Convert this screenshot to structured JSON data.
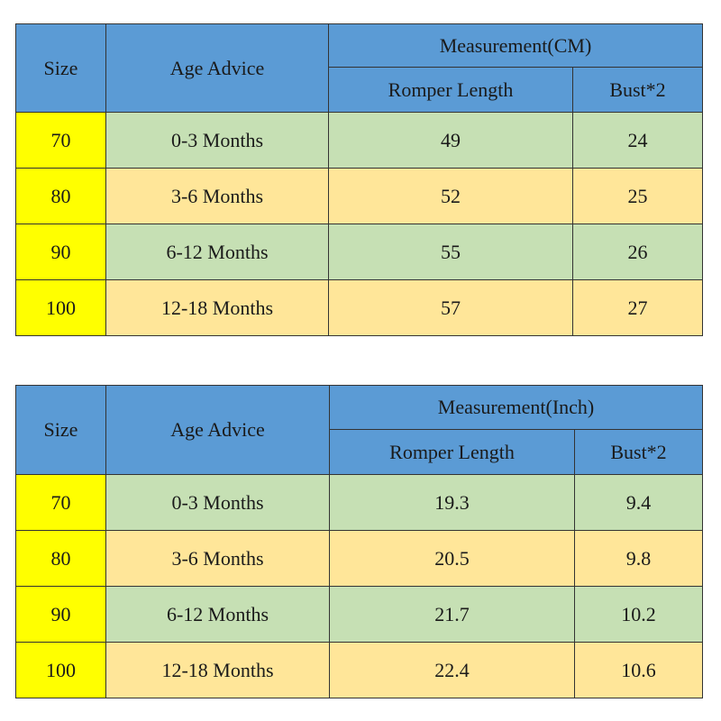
{
  "table_cm": {
    "header": {
      "size": "Size",
      "age": "Age Advice",
      "measurement": "Measurement(CM)",
      "length": "Romper Length",
      "bust": "Bust*2"
    },
    "rows": [
      {
        "size": "70",
        "age": "0-3 Months",
        "length": "49",
        "bust": "24"
      },
      {
        "size": "80",
        "age": "3-6 Months",
        "length": "52",
        "bust": "25"
      },
      {
        "size": "90",
        "age": "6-12 Months",
        "length": "55",
        "bust": "26"
      },
      {
        "size": "100",
        "age": "12-18 Months",
        "length": "57",
        "bust": "27"
      }
    ]
  },
  "table_inch": {
    "header": {
      "size": "Size",
      "age": "Age Advice",
      "measurement": "Measurement(Inch)",
      "length": "Romper Length",
      "bust": "Bust*2"
    },
    "rows": [
      {
        "size": "70",
        "age": "0-3 Months",
        "length": "19.3",
        "bust": "9.4"
      },
      {
        "size": "80",
        "age": "3-6 Months",
        "length": "20.5",
        "bust": "9.8"
      },
      {
        "size": "90",
        "age": "6-12 Months",
        "length": "21.7",
        "bust": "10.2"
      },
      {
        "size": "100",
        "age": "12-18 Months",
        "length": "22.4",
        "bust": "10.6"
      }
    ]
  },
  "colors": {
    "header": "#5b9bd5",
    "size_column": "#ffff00",
    "row_green": "#c6e0b4",
    "row_orange": "#ffe699"
  }
}
